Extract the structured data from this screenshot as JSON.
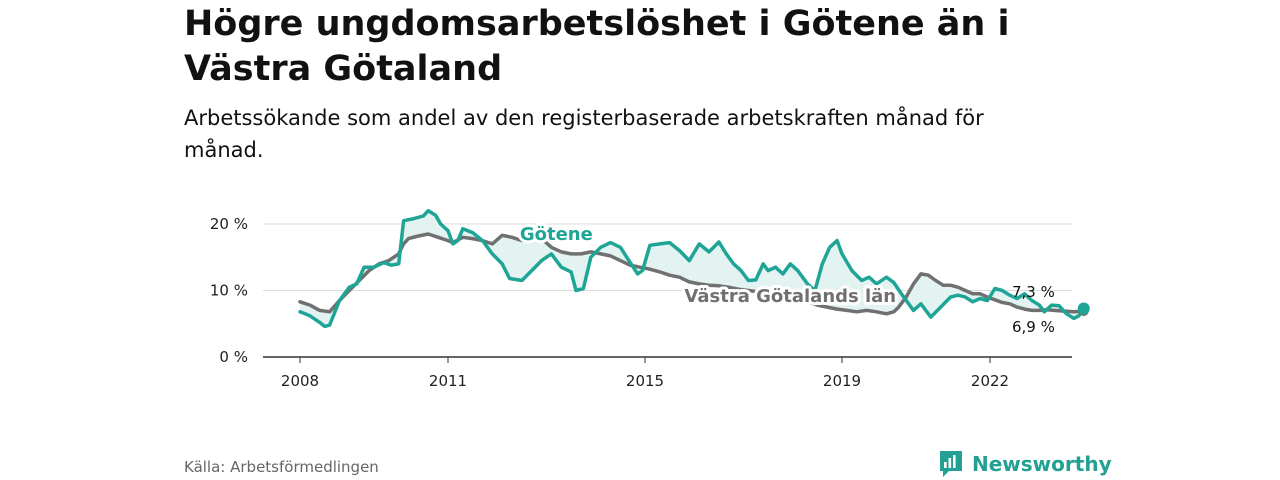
{
  "header": {
    "title": "Högre ungdomsarbetslöshet i Götene än i Västra Götaland",
    "subtitle": "Arbetssökande som andel av den registerbaserade arbetskraften månad för månad."
  },
  "footer": {
    "source": "Källa: Arbetsförmedlingen",
    "brand": "Newsworthy"
  },
  "colors": {
    "gotene": "#1ea596",
    "vg": "#707070",
    "fill": "#dff2f0",
    "brand": "#22a093"
  },
  "chart_data": {
    "type": "line",
    "title": "Högre ungdomsarbetslöshet i Götene än i Västra Götaland",
    "ylim": [
      0,
      21
    ],
    "xlim": [
      2008.0,
      2023.0
    ],
    "y_ticks": [
      0,
      10,
      20
    ],
    "y_tick_labels": [
      "0 %",
      "10 %",
      "20 %"
    ],
    "x_ticks": [
      2008,
      2011,
      2015,
      2019,
      2022
    ],
    "x_tick_labels": [
      "2008",
      "2011",
      "2015",
      "2019",
      "2022"
    ],
    "grid": true,
    "series": [
      {
        "name": "Götene",
        "label": "Götene",
        "label_at": [
          2013.2,
          17.6
        ],
        "end_label": "7,3 %",
        "points": [
          [
            2008.0,
            6.8
          ],
          [
            2008.2,
            6.2
          ],
          [
            2008.4,
            5.2
          ],
          [
            2008.5,
            4.6
          ],
          [
            2008.6,
            4.8
          ],
          [
            2008.8,
            8.5
          ],
          [
            2009.0,
            10.5
          ],
          [
            2009.15,
            11.0
          ],
          [
            2009.3,
            13.5
          ],
          [
            2009.5,
            13.5
          ],
          [
            2009.7,
            14.2
          ],
          [
            2009.85,
            13.8
          ],
          [
            2010.0,
            14.0
          ],
          [
            2010.1,
            20.5
          ],
          [
            2010.3,
            20.8
          ],
          [
            2010.5,
            21.2
          ],
          [
            2010.6,
            22.0
          ],
          [
            2010.75,
            21.3
          ],
          [
            2010.85,
            20.0
          ],
          [
            2011.0,
            19.0
          ],
          [
            2011.1,
            17.0
          ],
          [
            2011.2,
            17.5
          ],
          [
            2011.3,
            19.3
          ],
          [
            2011.5,
            18.7
          ],
          [
            2011.7,
            17.5
          ],
          [
            2011.9,
            15.5
          ],
          [
            2012.1,
            14.0
          ],
          [
            2012.25,
            11.8
          ],
          [
            2012.5,
            11.5
          ],
          [
            2012.7,
            13.0
          ],
          [
            2012.9,
            14.5
          ],
          [
            2013.1,
            15.5
          ],
          [
            2013.3,
            13.5
          ],
          [
            2013.5,
            12.8
          ],
          [
            2013.6,
            10.0
          ],
          [
            2013.75,
            10.3
          ],
          [
            2013.9,
            15.0
          ],
          [
            2014.1,
            16.5
          ],
          [
            2014.3,
            17.2
          ],
          [
            2014.5,
            16.5
          ],
          [
            2014.7,
            14.2
          ],
          [
            2014.85,
            12.5
          ],
          [
            2014.95,
            13.0
          ],
          [
            2015.1,
            16.8
          ],
          [
            2015.3,
            17.0
          ],
          [
            2015.5,
            17.2
          ],
          [
            2015.7,
            16.0
          ],
          [
            2015.9,
            14.5
          ],
          [
            2016.1,
            17.0
          ],
          [
            2016.3,
            15.8
          ],
          [
            2016.5,
            17.3
          ],
          [
            2016.65,
            15.5
          ],
          [
            2016.8,
            14.0
          ],
          [
            2016.95,
            13.0
          ],
          [
            2017.1,
            11.5
          ],
          [
            2017.25,
            11.6
          ],
          [
            2017.4,
            14.0
          ],
          [
            2017.5,
            13.0
          ],
          [
            2017.65,
            13.5
          ],
          [
            2017.8,
            12.5
          ],
          [
            2017.95,
            14.0
          ],
          [
            2018.1,
            13.0
          ],
          [
            2018.3,
            11.0
          ],
          [
            2018.45,
            10.0
          ],
          [
            2018.6,
            14.0
          ],
          [
            2018.75,
            16.5
          ],
          [
            2018.9,
            17.5
          ],
          [
            2019.0,
            15.5
          ],
          [
            2019.2,
            13.0
          ],
          [
            2019.4,
            11.5
          ],
          [
            2019.55,
            12.0
          ],
          [
            2019.7,
            11.0
          ],
          [
            2019.9,
            12.0
          ],
          [
            2020.05,
            11.2
          ],
          [
            2020.25,
            9.0
          ],
          [
            2020.45,
            7.0
          ],
          [
            2020.6,
            8.0
          ],
          [
            2020.8,
            6.0
          ],
          [
            2021.0,
            7.5
          ],
          [
            2021.2,
            9.0
          ],
          [
            2021.35,
            9.3
          ],
          [
            2021.5,
            9.0
          ],
          [
            2021.65,
            8.3
          ],
          [
            2021.8,
            8.8
          ],
          [
            2021.95,
            8.5
          ],
          [
            2022.1,
            10.3
          ],
          [
            2022.25,
            10.0
          ],
          [
            2022.4,
            9.3
          ],
          [
            2022.55,
            8.8
          ],
          [
            2022.7,
            9.5
          ],
          [
            2022.85,
            8.5
          ],
          [
            2023.0,
            7.8
          ],
          [
            2023.1,
            6.8
          ],
          [
            2023.25,
            7.8
          ],
          [
            2023.4,
            7.7
          ],
          [
            2023.55,
            6.5
          ],
          [
            2023.7,
            5.8
          ],
          [
            2023.8,
            6.2
          ],
          [
            2023.9,
            7.3
          ]
        ]
      },
      {
        "name": "Västra Götalands län",
        "label": "Västra Götalands län",
        "label_at": [
          2017.95,
          8.3
        ],
        "end_label": "6,9 %",
        "points": [
          [
            2008.0,
            8.3
          ],
          [
            2008.2,
            7.8
          ],
          [
            2008.4,
            7.0
          ],
          [
            2008.6,
            6.8
          ],
          [
            2008.8,
            8.5
          ],
          [
            2009.0,
            10.0
          ],
          [
            2009.2,
            11.5
          ],
          [
            2009.4,
            13.0
          ],
          [
            2009.6,
            14.0
          ],
          [
            2009.8,
            14.5
          ],
          [
            2010.0,
            15.5
          ],
          [
            2010.1,
            17.0
          ],
          [
            2010.2,
            17.8
          ],
          [
            2010.4,
            18.2
          ],
          [
            2010.6,
            18.5
          ],
          [
            2010.8,
            18.0
          ],
          [
            2011.0,
            17.5
          ],
          [
            2011.1,
            17.2
          ],
          [
            2011.3,
            18.0
          ],
          [
            2011.5,
            17.8
          ],
          [
            2011.7,
            17.5
          ],
          [
            2011.9,
            17.0
          ],
          [
            2012.1,
            18.3
          ],
          [
            2012.3,
            18.0
          ],
          [
            2012.5,
            17.5
          ],
          [
            2012.7,
            18.2
          ],
          [
            2012.9,
            17.8
          ],
          [
            2013.1,
            16.5
          ],
          [
            2013.3,
            15.8
          ],
          [
            2013.5,
            15.5
          ],
          [
            2013.7,
            15.5
          ],
          [
            2013.9,
            15.8
          ],
          [
            2014.1,
            15.5
          ],
          [
            2014.3,
            15.2
          ],
          [
            2014.5,
            14.5
          ],
          [
            2014.7,
            13.8
          ],
          [
            2014.9,
            13.5
          ],
          [
            2015.1,
            13.2
          ],
          [
            2015.3,
            12.8
          ],
          [
            2015.5,
            12.3
          ],
          [
            2015.7,
            12.0
          ],
          [
            2015.9,
            11.3
          ],
          [
            2016.1,
            11.0
          ],
          [
            2016.3,
            10.8
          ],
          [
            2016.5,
            10.7
          ],
          [
            2016.7,
            10.5
          ],
          [
            2016.9,
            10.2
          ],
          [
            2017.1,
            10.0
          ],
          [
            2017.3,
            9.8
          ],
          [
            2017.5,
            9.5
          ],
          [
            2017.7,
            9.3
          ],
          [
            2017.9,
            9.0
          ],
          [
            2018.1,
            8.6
          ],
          [
            2018.3,
            8.3
          ],
          [
            2018.5,
            7.8
          ],
          [
            2018.7,
            7.5
          ],
          [
            2018.9,
            7.2
          ],
          [
            2019.1,
            7.0
          ],
          [
            2019.3,
            6.8
          ],
          [
            2019.5,
            7.0
          ],
          [
            2019.7,
            6.8
          ],
          [
            2019.9,
            6.5
          ],
          [
            2020.05,
            6.8
          ],
          [
            2020.15,
            7.5
          ],
          [
            2020.3,
            9.0
          ],
          [
            2020.45,
            11.0
          ],
          [
            2020.6,
            12.5
          ],
          [
            2020.75,
            12.3
          ],
          [
            2020.9,
            11.5
          ],
          [
            2021.05,
            10.8
          ],
          [
            2021.2,
            10.8
          ],
          [
            2021.35,
            10.5
          ],
          [
            2021.5,
            10.0
          ],
          [
            2021.65,
            9.5
          ],
          [
            2021.8,
            9.5
          ],
          [
            2021.95,
            9.0
          ],
          [
            2022.1,
            8.6
          ],
          [
            2022.25,
            8.2
          ],
          [
            2022.4,
            8.0
          ],
          [
            2022.55,
            7.5
          ],
          [
            2022.7,
            7.2
          ],
          [
            2022.85,
            7.0
          ],
          [
            2023.0,
            7.0
          ],
          [
            2023.15,
            7.1
          ],
          [
            2023.3,
            7.0
          ],
          [
            2023.5,
            6.9
          ],
          [
            2023.7,
            6.8
          ],
          [
            2023.9,
            6.9
          ]
        ]
      }
    ]
  }
}
